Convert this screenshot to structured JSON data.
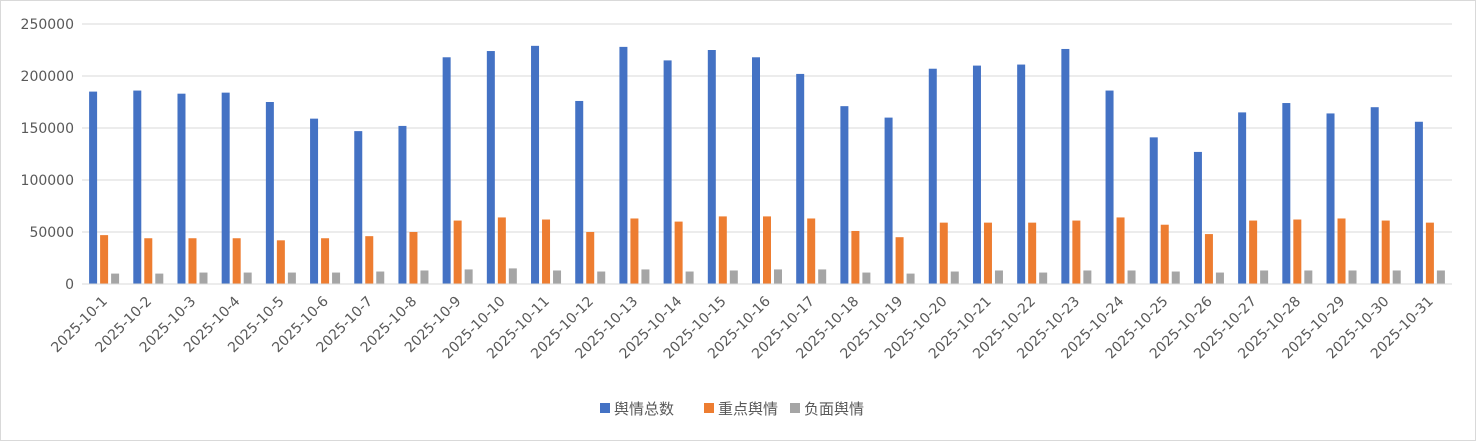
{
  "chart_data": {
    "type": "bar",
    "categories": [
      "2025-10-1",
      "2025-10-2",
      "2025-10-3",
      "2025-10-4",
      "2025-10-5",
      "2025-10-6",
      "2025-10-7",
      "2025-10-8",
      "2025-10-9",
      "2025-10-10",
      "2025-10-11",
      "2025-10-12",
      "2025-10-13",
      "2025-10-14",
      "2025-10-15",
      "2025-10-16",
      "2025-10-17",
      "2025-10-18",
      "2025-10-19",
      "2025-10-20",
      "2025-10-21",
      "2025-10-22",
      "2025-10-23",
      "2025-10-24",
      "2025-10-25",
      "2025-10-26",
      "2025-10-27",
      "2025-10-28",
      "2025-10-29",
      "2025-10-30",
      "2025-10-31"
    ],
    "series": [
      {
        "name": "舆情总数",
        "color": "#4472C4",
        "values": [
          185000,
          186000,
          183000,
          184000,
          175000,
          159000,
          147000,
          152000,
          218000,
          224000,
          229000,
          176000,
          228000,
          215000,
          225000,
          218000,
          202000,
          171000,
          160000,
          207000,
          210000,
          211000,
          226000,
          186000,
          141000,
          127000,
          165000,
          174000,
          164000,
          170000,
          156000
        ]
      },
      {
        "name": "重点舆情",
        "color": "#ED7D31",
        "values": [
          47000,
          44000,
          44000,
          44000,
          42000,
          44000,
          46000,
          50000,
          61000,
          64000,
          62000,
          50000,
          63000,
          60000,
          65000,
          65000,
          63000,
          51000,
          45000,
          59000,
          59000,
          59000,
          61000,
          64000,
          57000,
          48000,
          61000,
          62000,
          63000,
          61000,
          59000
        ]
      },
      {
        "name": "负面舆情",
        "color": "#A5A5A5",
        "values": [
          10000,
          10000,
          11000,
          11000,
          11000,
          11000,
          12000,
          13000,
          14000,
          15000,
          13000,
          12000,
          14000,
          12000,
          13000,
          14000,
          14000,
          11000,
          10000,
          12000,
          13000,
          11000,
          13000,
          13000,
          12000,
          11000,
          13000,
          13000,
          13000,
          13000,
          13000
        ]
      }
    ],
    "yticks": [
      "0",
      "50000",
      "100000",
      "150000",
      "200000",
      "250000"
    ],
    "ylim": [
      0,
      250000
    ],
    "grid": true,
    "legend_position": "bottom"
  }
}
